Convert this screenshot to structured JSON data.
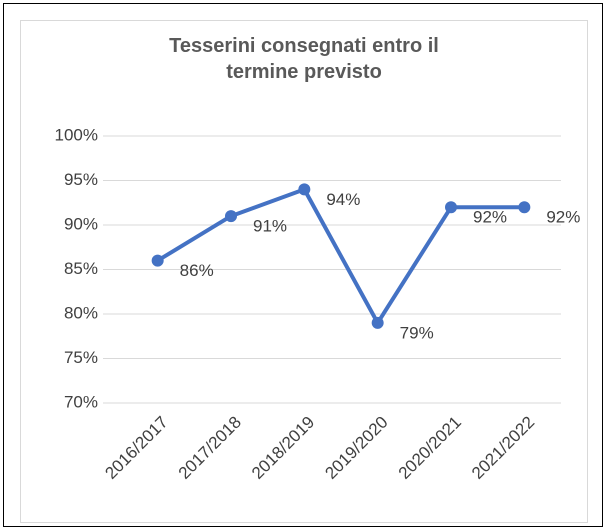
{
  "chart_data": {
    "type": "line",
    "title": "Tesserini consegnati entro il termine previsto",
    "categories": [
      "2016/2017",
      "2017/2018",
      "2018/2019",
      "2019/2020",
      "2020/2021",
      "2021/2022"
    ],
    "series": [
      {
        "color": "#4472c4",
        "values": [
          86,
          91,
          94,
          79,
          92,
          92
        ],
        "value_labels": [
          "86%",
          "91%",
          "94%",
          "79%",
          "92%",
          "92%"
        ]
      }
    ],
    "ylim": [
      70,
      100
    ],
    "yticks": [
      {
        "value": 70,
        "label": "70%"
      },
      {
        "value": 75,
        "label": "75%"
      },
      {
        "value": 80,
        "label": "80%"
      },
      {
        "value": 85,
        "label": "85%"
      },
      {
        "value": 90,
        "label": "90%"
      },
      {
        "value": 95,
        "label": "95%"
      },
      {
        "value": 100,
        "label": "100%"
      }
    ],
    "grid": true
  }
}
